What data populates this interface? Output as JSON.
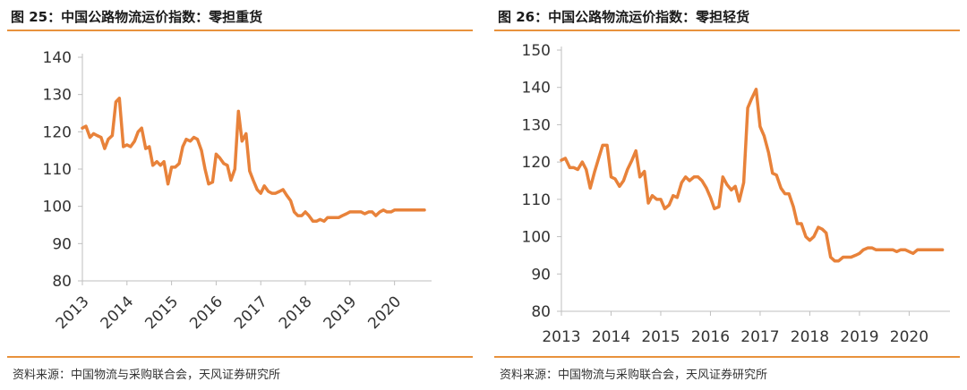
{
  "charts": [
    {
      "title": "图 25：中国公路物流运价指数：零担重货",
      "source": "资料来源：中国物流与采购联合会，天风证券研究所"
    },
    {
      "title": "图 26：中国公路物流运价指数：零担轻货",
      "source": "资料来源：中国物流与采购联合会，天风证券研究所"
    }
  ],
  "colors": {
    "line": "#e8823a",
    "rule": "#e8923c",
    "axis": "#bfbfbf"
  },
  "chart_data": [
    {
      "type": "line",
      "title": "",
      "xlabel": "",
      "ylabel": "",
      "ylim": [
        80,
        140
      ],
      "yticks": [
        80,
        90,
        100,
        110,
        120,
        130,
        140
      ],
      "xlim": [
        2013,
        2020.75
      ],
      "xticks": [
        2013,
        2014,
        2015,
        2016,
        2017,
        2018,
        2019,
        2020
      ],
      "xtick_labels": [
        "2013",
        "2014",
        "2015",
        "2016",
        "2017",
        "2018",
        "2019",
        "2020"
      ],
      "xtick_rotation": -45,
      "grid": false,
      "series": [
        {
          "x": [
            2013.0,
            2013.08,
            2013.17,
            2013.25,
            2013.33,
            2013.42,
            2013.5,
            2013.58,
            2013.67,
            2013.75,
            2013.83,
            2013.92,
            2014.0,
            2014.08,
            2014.17,
            2014.25,
            2014.33,
            2014.42,
            2014.5,
            2014.58,
            2014.67,
            2014.75,
            2014.83,
            2014.92,
            2015.0,
            2015.08,
            2015.17,
            2015.25,
            2015.33,
            2015.42,
            2015.5,
            2015.58,
            2015.67,
            2015.75,
            2015.83,
            2015.92,
            2016.0,
            2016.08,
            2016.17,
            2016.25,
            2016.33,
            2016.42,
            2016.5,
            2016.58,
            2016.67,
            2016.75,
            2016.83,
            2016.92,
            2017.0,
            2017.08,
            2017.17,
            2017.25,
            2017.33,
            2017.42,
            2017.5,
            2017.58,
            2017.67,
            2017.75,
            2017.83,
            2017.92,
            2018.0,
            2018.08,
            2018.17,
            2018.25,
            2018.33,
            2018.42,
            2018.5,
            2018.58,
            2018.67,
            2018.75,
            2018.83,
            2018.92,
            2019.0,
            2019.08,
            2019.17,
            2019.25,
            2019.33,
            2019.42,
            2019.5,
            2019.58,
            2019.67,
            2019.75,
            2019.83,
            2019.92,
            2020.0,
            2020.08,
            2020.17,
            2020.25,
            2020.33,
            2020.42,
            2020.5,
            2020.58,
            2020.67
          ],
          "y": [
            121,
            121.5,
            118.5,
            119.5,
            119,
            118.5,
            115.5,
            118,
            119,
            128,
            129,
            116,
            116.5,
            116,
            117.5,
            120,
            121,
            115.5,
            116,
            111,
            112,
            111,
            112,
            106,
            110.5,
            110.5,
            111.5,
            116,
            118,
            117.5,
            118.5,
            118,
            115,
            110,
            106,
            106.5,
            114,
            113,
            111.5,
            111,
            107,
            110,
            125.5,
            117.5,
            119.5,
            109.5,
            107,
            104.5,
            103.5,
            105.5,
            104,
            103.5,
            103.5,
            104,
            104.5,
            103,
            101.5,
            98.5,
            97.5,
            97.5,
            98.5,
            97.5,
            96,
            96,
            96.5,
            96,
            97,
            97,
            97,
            97,
            97.5,
            98,
            98.5,
            98.5,
            98.5,
            98.5,
            98,
            98.5,
            98.5,
            97.5,
            98.5,
            99,
            98.5,
            98.5,
            99,
            99,
            99,
            99,
            99,
            99,
            99,
            99,
            99
          ]
        }
      ]
    },
    {
      "type": "line",
      "title": "",
      "xlabel": "",
      "ylabel": "",
      "ylim": [
        80,
        150
      ],
      "yticks": [
        80,
        90,
        100,
        110,
        120,
        130,
        140,
        150
      ],
      "xlim": [
        2013,
        2020.75
      ],
      "xticks": [
        2013,
        2014,
        2015,
        2016,
        2017,
        2018,
        2019,
        2020
      ],
      "xtick_labels": [
        "2013",
        "2014",
        "2015",
        "2016",
        "2017",
        "2018",
        "2019",
        "2020"
      ],
      "xtick_rotation": 0,
      "grid": false,
      "series": [
        {
          "x": [
            2013.0,
            2013.08,
            2013.17,
            2013.25,
            2013.33,
            2013.42,
            2013.5,
            2013.58,
            2013.67,
            2013.75,
            2013.83,
            2013.92,
            2014.0,
            2014.08,
            2014.17,
            2014.25,
            2014.33,
            2014.42,
            2014.5,
            2014.58,
            2014.67,
            2014.75,
            2014.83,
            2014.92,
            2015.0,
            2015.08,
            2015.17,
            2015.25,
            2015.33,
            2015.42,
            2015.5,
            2015.58,
            2015.67,
            2015.75,
            2015.83,
            2015.92,
            2016.0,
            2016.08,
            2016.17,
            2016.25,
            2016.33,
            2016.42,
            2016.5,
            2016.58,
            2016.67,
            2016.75,
            2016.83,
            2016.92,
            2017.0,
            2017.08,
            2017.17,
            2017.25,
            2017.33,
            2017.42,
            2017.5,
            2017.58,
            2017.67,
            2017.75,
            2017.83,
            2017.92,
            2018.0,
            2018.08,
            2018.17,
            2018.25,
            2018.33,
            2018.42,
            2018.5,
            2018.58,
            2018.67,
            2018.75,
            2018.83,
            2018.92,
            2019.0,
            2019.08,
            2019.17,
            2019.25,
            2019.33,
            2019.42,
            2019.5,
            2019.58,
            2019.67,
            2019.75,
            2019.83,
            2019.92,
            2020.0,
            2020.08,
            2020.17,
            2020.25,
            2020.33,
            2020.42,
            2020.5,
            2020.58,
            2020.67
          ],
          "y": [
            120.5,
            121,
            118.5,
            118.5,
            118,
            120,
            118,
            113,
            117.5,
            121,
            124.5,
            124.5,
            116,
            115.5,
            113.5,
            115,
            118,
            120.5,
            123,
            116,
            117.5,
            109,
            111,
            110,
            110,
            107.5,
            108.5,
            111,
            110.5,
            114.5,
            116,
            115,
            116,
            116,
            115,
            113,
            110.5,
            107.5,
            108,
            116,
            114,
            112.5,
            113.5,
            109.5,
            114.5,
            134.5,
            137,
            139.5,
            129.5,
            127,
            122.5,
            117,
            116.5,
            113,
            111.5,
            111.5,
            108,
            103.5,
            103.5,
            100,
            99,
            100,
            102.5,
            102,
            101,
            94.5,
            93.5,
            93.5,
            94.5,
            94.5,
            94.5,
            95,
            95.5,
            96.5,
            97,
            97,
            96.5,
            96.5,
            96.5,
            96.5,
            96.5,
            96,
            96.5,
            96.5,
            96,
            95.5,
            96.5,
            96.5,
            96.5,
            96.5,
            96.5,
            96.5,
            96.5
          ]
        }
      ]
    }
  ]
}
